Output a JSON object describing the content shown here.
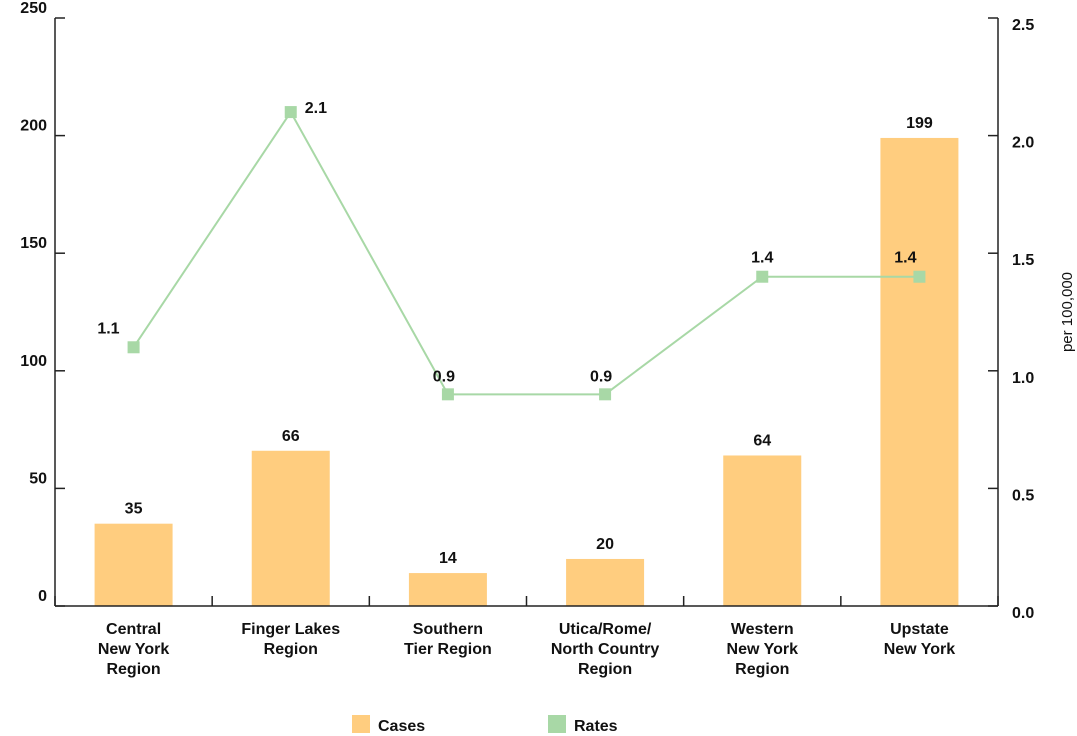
{
  "chart_data": {
    "type": "bar",
    "categories": [
      [
        "Central",
        "New York",
        "Region"
      ],
      [
        "Finger Lakes",
        "Region"
      ],
      [
        "Southern",
        "Tier Region"
      ],
      [
        "Utica/Rome/",
        "North Country",
        "Region"
      ],
      [
        "Western",
        "New York",
        "Region"
      ],
      [
        "Upstate",
        "New York"
      ]
    ],
    "series": [
      {
        "name": "Cases",
        "type": "bar",
        "axis": "left",
        "color": "#ffcd7f",
        "values": [
          35,
          66,
          14,
          20,
          64,
          199
        ],
        "labels": [
          "35",
          "66",
          "14",
          "20",
          "64",
          "199"
        ]
      },
      {
        "name": "Rates",
        "type": "line",
        "axis": "right",
        "color": "#a8d8a6",
        "values": [
          1.1,
          2.1,
          0.9,
          0.9,
          1.4,
          1.4
        ],
        "labels": [
          "1.1",
          "2.1",
          "0.9",
          "0.9",
          "1.4",
          "1.4"
        ]
      }
    ],
    "y_left": {
      "range": [
        0,
        250
      ],
      "ticks": [
        0,
        50,
        100,
        150,
        200,
        250
      ],
      "tick_labels": [
        "0",
        "50",
        "100",
        "150",
        "200",
        "250"
      ],
      "label": ""
    },
    "y_right": {
      "range": [
        0,
        2.5
      ],
      "ticks": [
        0,
        0.5,
        1.0,
        1.5,
        2.0,
        2.5
      ],
      "tick_labels": [
        "0.0",
        "0.5",
        "1.0",
        "1.5",
        "2.0",
        "2.5"
      ],
      "label": "per 100,000"
    },
    "grid": false,
    "legend": {
      "position": "bottom",
      "entries": [
        "Cases",
        "Rates"
      ]
    }
  }
}
